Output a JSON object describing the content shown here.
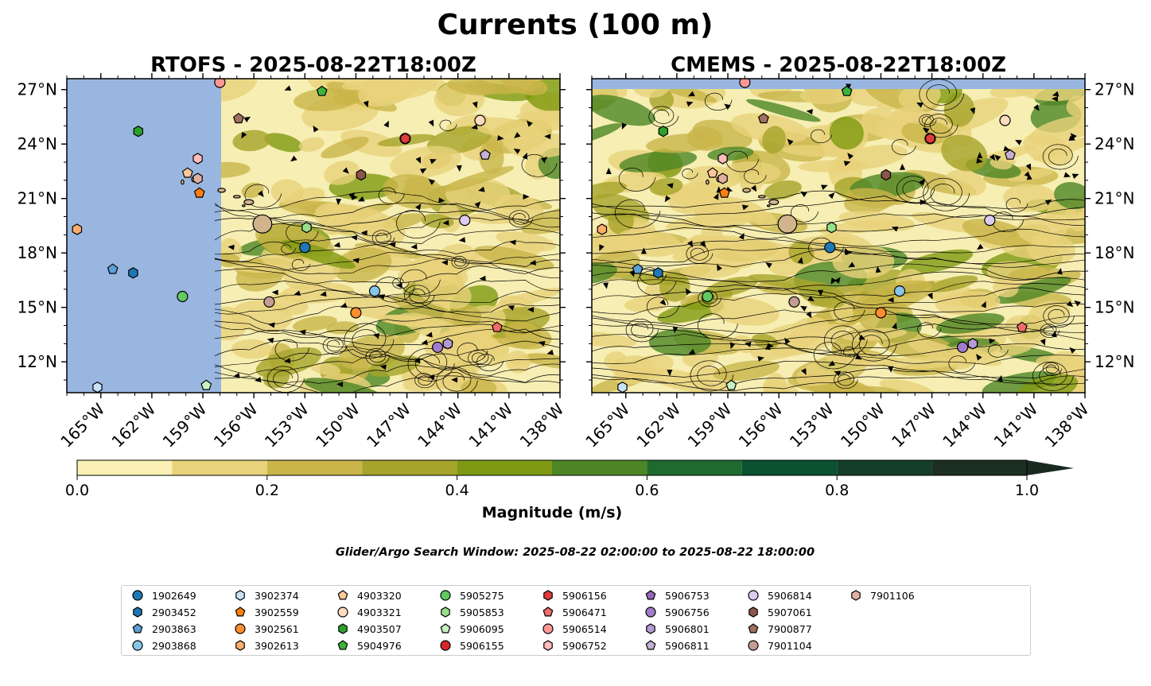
{
  "figure": {
    "title": "Currents (100 m)",
    "search_window": "Glider/Argo Search Window: 2025-08-22 02:00:00 to 2025-08-22 18:00:00"
  },
  "colors": {
    "land_mask": "#98b6e0",
    "land": "#d2b48c",
    "cmap": [
      "#fbf1b4",
      "#e8d27a",
      "#c9b54a",
      "#a6a42a",
      "#7f9a12",
      "#4e8626",
      "#1f6a2e",
      "#0b5230",
      "#153e29",
      "#1d2e22"
    ]
  },
  "panels": [
    {
      "id": "rtofs",
      "title": "RTOFS - 2025-08-22T18:00Z"
    },
    {
      "id": "cmems",
      "title": "CMEMS - 2025-08-22T18:00Z"
    }
  ],
  "axes": {
    "lon_range": [
      -167,
      -138
    ],
    "lat_range": [
      10.3,
      27.6
    ],
    "lon_ticks": [
      -165,
      -162,
      -159,
      -156,
      -153,
      -150,
      -147,
      -144,
      -141,
      -138
    ],
    "lon_tick_labels": [
      "165°W",
      "162°W",
      "159°W",
      "156°W",
      "153°W",
      "150°W",
      "147°W",
      "144°W",
      "141°W",
      "138°W"
    ],
    "lat_ticks": [
      12,
      15,
      18,
      21,
      24,
      27
    ],
    "lat_tick_labels": [
      "12°N",
      "15°N",
      "18°N",
      "21°N",
      "24°N",
      "27°N"
    ]
  },
  "colorbar": {
    "label": "Magnitude (m/s)",
    "range": [
      0,
      1
    ],
    "boundaries": [
      0,
      0.1,
      0.2,
      0.3,
      0.4,
      0.5,
      0.6,
      0.7,
      0.8,
      0.9,
      1.0
    ],
    "ticks": [
      0,
      0.2,
      0.4,
      0.6,
      0.8,
      1.0
    ],
    "tick_labels": [
      "0.0",
      "0.2",
      "0.4",
      "0.6",
      "0.8",
      "1.0"
    ],
    "extend": "max"
  },
  "floats": [
    {
      "id": "1902649",
      "marker": "circle",
      "color": "#1f77b4",
      "lon": -153.0,
      "lat": 18.3
    },
    {
      "id": "2903452",
      "marker": "hexagon",
      "color": "#1f77b4",
      "lon": -163.1,
      "lat": 16.9
    },
    {
      "id": "2903863",
      "marker": "pentagon",
      "color": "#5b9fd6",
      "lon": -164.3,
      "lat": 17.1
    },
    {
      "id": "2903868",
      "marker": "circle",
      "color": "#87c5ea",
      "lon": -148.9,
      "lat": 15.9
    },
    {
      "id": "3902374",
      "marker": "hexagon",
      "color": "#c6e4f6",
      "lon": -165.2,
      "lat": 10.6
    },
    {
      "id": "3902559",
      "marker": "pentagon",
      "color": "#ff7f0e",
      "lon": -159.2,
      "lat": 21.3
    },
    {
      "id": "3902561",
      "marker": "circle",
      "color": "#ff8c2e",
      "lon": -150.0,
      "lat": 14.7
    },
    {
      "id": "3902613",
      "marker": "hexagon",
      "color": "#ffae6b",
      "lon": -166.4,
      "lat": 19.3
    },
    {
      "id": "4903320",
      "marker": "pentagon",
      "color": "#ffc89a",
      "lon": -159.9,
      "lat": 22.4
    },
    {
      "id": "4903321",
      "marker": "circle",
      "color": "#ffdcc0",
      "lon": -142.7,
      "lat": 25.3
    },
    {
      "id": "4903507",
      "marker": "hexagon",
      "color": "#2ca02c",
      "lon": -162.8,
      "lat": 24.7
    },
    {
      "id": "5904976",
      "marker": "pentagon",
      "color": "#3cb43c",
      "lon": -152.0,
      "lat": 26.9
    },
    {
      "id": "5905275",
      "marker": "circle",
      "color": "#62c862",
      "lon": -160.2,
      "lat": 15.6
    },
    {
      "id": "5905853",
      "marker": "hexagon",
      "color": "#98df8a",
      "lon": -152.9,
      "lat": 19.4
    },
    {
      "id": "5906095",
      "marker": "pentagon",
      "color": "#c7f2c0",
      "lon": -158.8,
      "lat": 10.7
    },
    {
      "id": "5906155",
      "marker": "circle",
      "color": "#d62728",
      "lon": -147.1,
      "lat": 24.3
    },
    {
      "id": "5906156",
      "marker": "hexagon",
      "color": "#e03c3c",
      "lon": -147.1,
      "lat": 24.3
    },
    {
      "id": "5906471",
      "marker": "pentagon",
      "color": "#f26b6b",
      "lon": -141.7,
      "lat": 13.9
    },
    {
      "id": "5906514",
      "marker": "circle",
      "color": "#ff9896",
      "lon": -158.0,
      "lat": 27.4
    },
    {
      "id": "5906752",
      "marker": "hexagon",
      "color": "#ffbcbb",
      "lon": -159.3,
      "lat": 23.2
    },
    {
      "id": "5906753",
      "marker": "pentagon",
      "color": "#9467bd",
      "lon": -144.6,
      "lat": 13.0
    },
    {
      "id": "5906756",
      "marker": "circle",
      "color": "#a07ccb",
      "lon": -145.2,
      "lat": 12.8
    },
    {
      "id": "5906801",
      "marker": "hexagon",
      "color": "#b49ad7",
      "lon": -144.6,
      "lat": 13.0
    },
    {
      "id": "5906811",
      "marker": "pentagon",
      "color": "#c5b0d5",
      "lon": -142.4,
      "lat": 23.4
    },
    {
      "id": "5906814",
      "marker": "circle",
      "color": "#dccaf0",
      "lon": -143.6,
      "lat": 19.8
    },
    {
      "id": "5907061",
      "marker": "hexagon",
      "color": "#8c564b",
      "lon": -149.7,
      "lat": 22.3
    },
    {
      "id": "7900877",
      "marker": "pentagon",
      "color": "#a0705f",
      "lon": -156.9,
      "lat": 25.4
    },
    {
      "id": "7901104",
      "marker": "circle",
      "color": "#c49c94",
      "lon": -155.1,
      "lat": 15.3
    },
    {
      "id": "7901106",
      "marker": "hexagon",
      "color": "#e0b0a0",
      "lon": -159.3,
      "lat": 22.1
    }
  ]
}
